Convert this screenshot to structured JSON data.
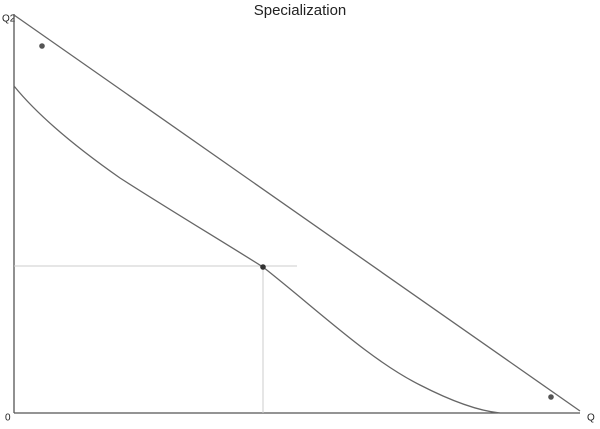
{
  "title": "Specialization",
  "axes": {
    "y_label": "Q2",
    "origin": "0",
    "x_label": "Q"
  }
}
